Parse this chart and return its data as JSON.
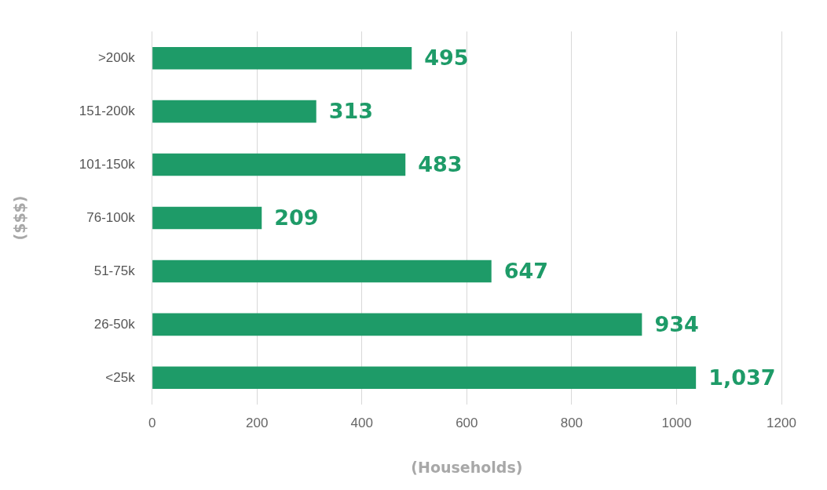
{
  "chart_data": {
    "type": "bar",
    "orientation": "horizontal",
    "xlabel": "(Households)",
    "ylabel": "($$$)",
    "categories": [
      ">200k",
      "151-200k",
      "101-150k",
      "76-100k",
      "51-75k",
      "26-50k",
      "<25k"
    ],
    "values": [
      495,
      313,
      483,
      209,
      647,
      934,
      1037
    ],
    "value_labels": [
      "495",
      "313",
      "483",
      "209",
      "647",
      "934",
      "1,037"
    ],
    "color": "#1e9b68",
    "xlim": [
      0,
      1200
    ],
    "xticks": [
      0,
      200,
      400,
      600,
      800,
      1000,
      1200
    ],
    "grid": "x",
    "legend": false
  }
}
